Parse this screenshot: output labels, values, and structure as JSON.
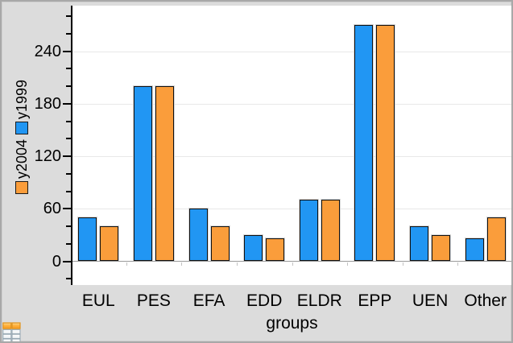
{
  "window": {
    "background": "#dcdcdc",
    "border_color": "#a8a8a8",
    "plot_background": "#ffffff"
  },
  "chart_data": {
    "type": "bar",
    "title": "",
    "categories": [
      "EUL",
      "PES",
      "EFA",
      "EDD",
      "ELDR",
      "EPP",
      "UEN",
      "Other"
    ],
    "series": [
      {
        "name": "y1999",
        "color": "#2196f3",
        "values": [
          50,
          200,
          60,
          30,
          70,
          270,
          40,
          26
        ]
      },
      {
        "name": "y2004",
        "color": "#fa9d3b",
        "values": [
          40,
          200,
          40,
          26,
          70,
          270,
          30,
          50
        ]
      }
    ],
    "legend": [
      {
        "label": "y2004",
        "color": "#fa9d3b"
      },
      {
        "label": "y1999",
        "color": "#2196f3"
      }
    ],
    "legend_position": "left-rotated",
    "xlabel": "groups",
    "ylabel": "",
    "yticks": [
      0,
      60,
      120,
      180,
      240
    ],
    "minor_tick_step": 20,
    "ylim": [
      -27,
      292
    ],
    "grid": "horizontal-major"
  },
  "icons": {
    "page_icon": "spreadsheet-icon"
  }
}
